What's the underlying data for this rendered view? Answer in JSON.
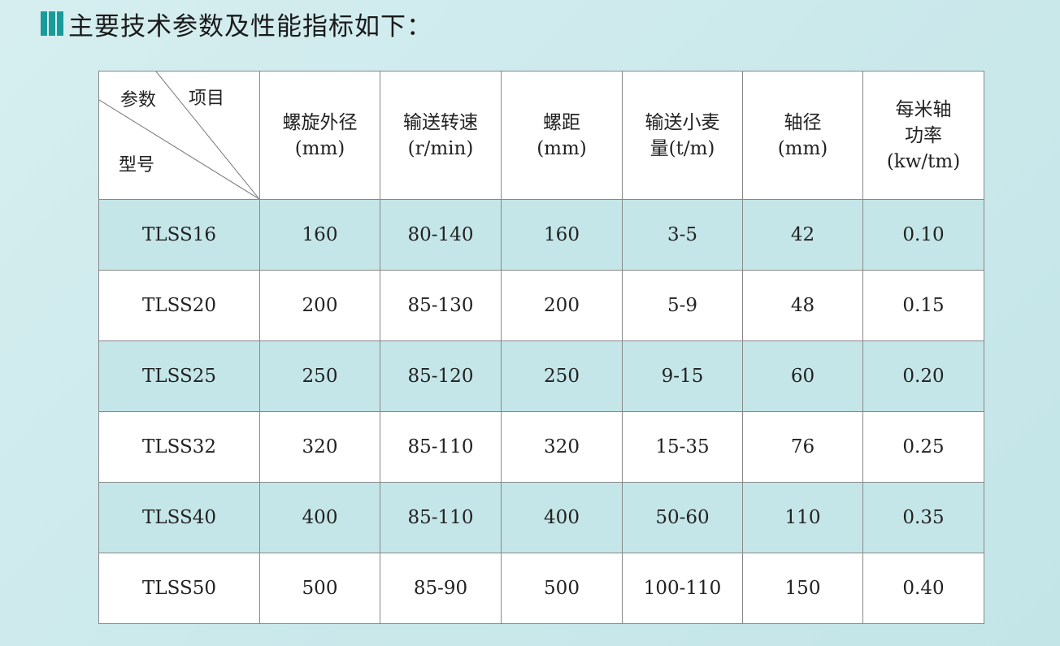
{
  "title": "主要技术参数及性能指标如下：",
  "table": {
    "corner": {
      "item": "项目",
      "param": "参数",
      "model": "型号"
    },
    "headers": [
      {
        "l1": "螺旋外径",
        "l2": "(mm)",
        "l3": ""
      },
      {
        "l1": "输送转速",
        "l2": "(r/min)",
        "l3": ""
      },
      {
        "l1": "螺距",
        "l2": "(mm)",
        "l3": ""
      },
      {
        "l1": "输送小麦",
        "l2": "量(t/m)",
        "l3": ""
      },
      {
        "l1": "轴径",
        "l2": "(mm)",
        "l3": ""
      },
      {
        "l1": "每米轴",
        "l2": "功率",
        "l3": "(kw/tm)"
      }
    ],
    "rows": [
      [
        "TLSS16",
        "160",
        "80-140",
        "160",
        "3-5",
        "42",
        "0.10"
      ],
      [
        "TLSS20",
        "200",
        "85-130",
        "200",
        "5-9",
        "48",
        "0.15"
      ],
      [
        "TLSS25",
        "250",
        "85-120",
        "250",
        "9-15",
        "60",
        "0.20"
      ],
      [
        "TLSS32",
        "320",
        "85-110",
        "320",
        "15-35",
        "76",
        "0.25"
      ],
      [
        "TLSS40",
        "400",
        "85-110",
        "400",
        "50-60",
        "110",
        "0.35"
      ],
      [
        "TLSS50",
        "500",
        "85-90",
        "500",
        "100-110",
        "150",
        "0.40"
      ]
    ]
  },
  "colors": {
    "accent": "#1a9a9a",
    "row_alt": "#c5e6e8"
  }
}
